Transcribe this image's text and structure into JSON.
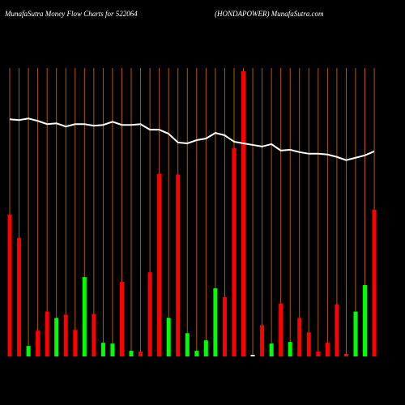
{
  "chart_data": {
    "type": "bar",
    "title": "MunafaSutra  Money Flow  Charts for 522064",
    "subtitle": "(HONDAPOWER) MunafaSutra.com",
    "values": [
      177,
      148,
      13,
      32,
      56,
      48,
      52,
      33,
      99,
      53,
      17,
      16,
      93,
      7,
      6,
      105,
      228,
      48,
      227,
      29,
      7,
      20,
      85,
      74,
      260,
      356,
      2,
      39,
      16,
      66,
      18,
      48,
      30,
      6,
      17,
      65,
      3,
      56,
      89,
      183
    ],
    "colors": [
      "#ff0000",
      "#ff0000",
      "#00ff00",
      "#ff0000",
      "#ff0000",
      "#00ff00",
      "#ff0000",
      "#ff0000",
      "#00ff00",
      "#ff0000",
      "#00ff00",
      "#00ff00",
      "#ff0000",
      "#00ff00",
      "#ff0000",
      "#ff0000",
      "#ff0000",
      "#00ff00",
      "#ff0000",
      "#00ff00",
      "#00ff00",
      "#00ff00",
      "#00ff00",
      "#ff0000",
      "#ff0000",
      "#ff0000",
      "#ffffff",
      "#ff0000",
      "#00ff00",
      "#ff0000",
      "#00ff00",
      "#ff0000",
      "#ff0000",
      "#ff0000",
      "#ff0000",
      "#ff0000",
      "#ff0000",
      "#00ff00",
      "#00ff00",
      "#ff0000"
    ],
    "line": {
      "color": "#ffffff",
      "values": [
        296,
        295,
        297,
        294,
        290,
        291,
        287,
        290,
        290,
        288,
        289,
        293,
        289,
        289,
        290,
        283,
        283,
        278,
        267,
        266,
        270,
        272,
        279,
        276,
        268,
        266,
        264,
        262,
        265,
        257,
        258,
        255,
        253,
        253,
        252,
        249,
        245,
        248,
        251,
        256
      ]
    },
    "ylim": [
      0,
      360
    ],
    "grid": true,
    "grid_color": "#b35900"
  }
}
